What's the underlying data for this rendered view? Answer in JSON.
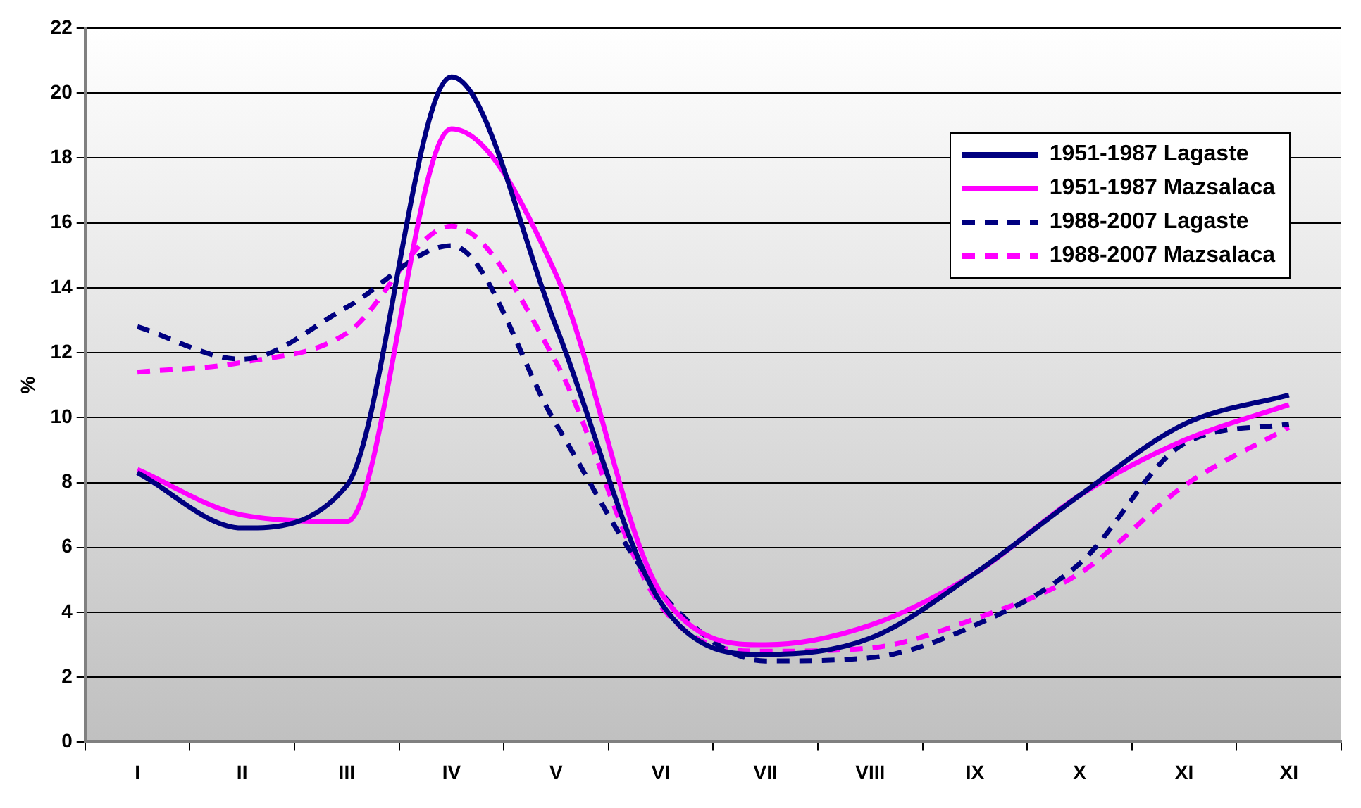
{
  "chart_data": {
    "type": "line",
    "ylabel": "%",
    "categories": [
      "I",
      "II",
      "III",
      "IV",
      "V",
      "VI",
      "VII",
      "VIII",
      "IX",
      "X",
      "XI",
      "XI"
    ],
    "ylim": [
      0,
      22
    ],
    "yticks": [
      0,
      2,
      4,
      6,
      8,
      10,
      12,
      14,
      16,
      18,
      20,
      22
    ],
    "grid": "y",
    "legend": "top right",
    "marker": "none",
    "series": [
      {
        "name": "1951-1987 Lagaste",
        "color": "#000080",
        "line_style": "solid",
        "values": [
          8.3,
          6.6,
          7.9,
          20.5,
          12.8,
          4.3,
          2.7,
          3.2,
          5.2,
          7.6,
          9.8,
          10.7
        ]
      },
      {
        "name": "1951-1987 Mazsalaca",
        "color": "#ff00ff",
        "line_style": "solid",
        "values": [
          8.4,
          7.0,
          6.8,
          18.9,
          14.4,
          4.6,
          3.0,
          3.6,
          5.2,
          7.6,
          9.3,
          10.4
        ]
      },
      {
        "name": "1988-2007 Lagaste",
        "color": "#000080",
        "line_style": "dashed",
        "values": [
          12.8,
          11.8,
          13.4,
          15.3,
          9.8,
          4.6,
          2.5,
          2.6,
          3.6,
          5.5,
          9.2,
          9.8
        ]
      },
      {
        "name": "1988-2007 Mazsalaca",
        "color": "#ff00ff",
        "line_style": "dashed",
        "values": [
          11.4,
          11.7,
          12.6,
          15.9,
          11.7,
          4.2,
          2.8,
          2.9,
          3.8,
          5.2,
          7.9,
          9.7
        ]
      }
    ]
  }
}
